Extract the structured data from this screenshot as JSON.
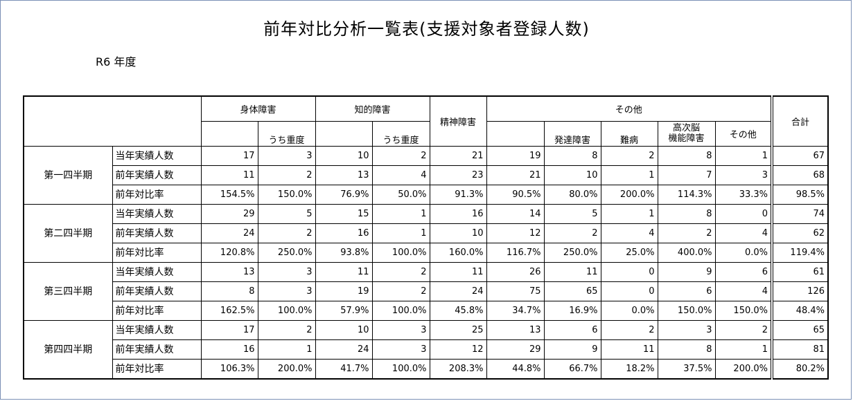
{
  "title": "前年対比分析一覧表(支援対象者登録人数)",
  "fiscal_year": "R6 年度",
  "headers": {
    "physical": "身体障害",
    "intellectual": "知的障害",
    "mental": "精神障害",
    "other": "その他",
    "total": "合計",
    "severe": "うち重度",
    "developmental": "発達障害",
    "intractable": "難病",
    "higher_brain": "高次脳\n機能障害",
    "other_sub": "その他"
  },
  "row_labels": {
    "current": "当年実績人数",
    "previous": "前年実績人数",
    "ratio": "前年対比率"
  },
  "quarters": [
    {
      "label": "第一四半期",
      "current": [
        "17",
        "3",
        "10",
        "2",
        "21",
        "19",
        "8",
        "2",
        "8",
        "1",
        "67"
      ],
      "previous": [
        "11",
        "2",
        "13",
        "4",
        "23",
        "21",
        "10",
        "1",
        "7",
        "3",
        "68"
      ],
      "ratio": [
        "154.5%",
        "150.0%",
        "76.9%",
        "50.0%",
        "91.3%",
        "90.5%",
        "80.0%",
        "200.0%",
        "114.3%",
        "33.3%",
        "98.5%"
      ]
    },
    {
      "label": "第二四半期",
      "current": [
        "29",
        "5",
        "15",
        "1",
        "16",
        "14",
        "5",
        "1",
        "8",
        "0",
        "74"
      ],
      "previous": [
        "24",
        "2",
        "16",
        "1",
        "10",
        "12",
        "2",
        "4",
        "2",
        "4",
        "62"
      ],
      "ratio": [
        "120.8%",
        "250.0%",
        "93.8%",
        "100.0%",
        "160.0%",
        "116.7%",
        "250.0%",
        "25.0%",
        "400.0%",
        "0.0%",
        "119.4%"
      ]
    },
    {
      "label": "第三四半期",
      "current": [
        "13",
        "3",
        "11",
        "2",
        "11",
        "26",
        "11",
        "0",
        "9",
        "6",
        "61"
      ],
      "previous": [
        "8",
        "3",
        "19",
        "2",
        "24",
        "75",
        "65",
        "0",
        "6",
        "4",
        "126"
      ],
      "ratio": [
        "162.5%",
        "100.0%",
        "57.9%",
        "100.0%",
        "45.8%",
        "34.7%",
        "16.9%",
        "0.0%",
        "150.0%",
        "150.0%",
        "48.4%"
      ]
    },
    {
      "label": "第四四半期",
      "current": [
        "17",
        "2",
        "10",
        "3",
        "25",
        "13",
        "6",
        "2",
        "3",
        "2",
        "65"
      ],
      "previous": [
        "16",
        "1",
        "24",
        "3",
        "12",
        "29",
        "9",
        "11",
        "8",
        "1",
        "81"
      ],
      "ratio": [
        "106.3%",
        "200.0%",
        "41.7%",
        "100.0%",
        "208.3%",
        "44.8%",
        "66.7%",
        "18.2%",
        "37.5%",
        "200.0%",
        "80.2%"
      ]
    }
  ]
}
